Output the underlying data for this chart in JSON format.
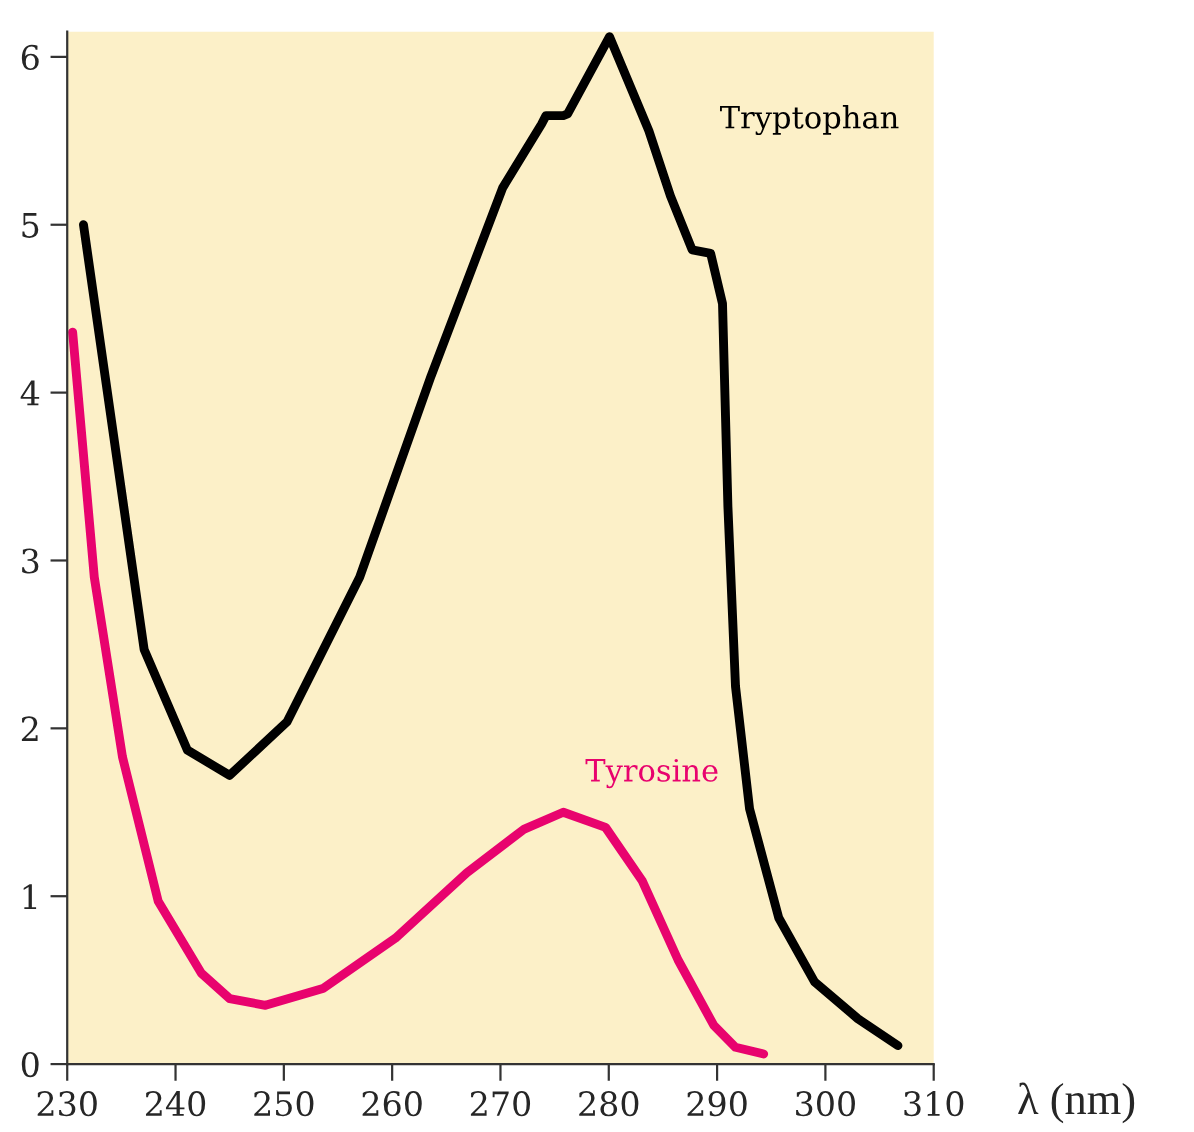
{
  "chart_data": {
    "type": "line",
    "xlabel": "λ (nm)",
    "xlim": [
      230,
      310
    ],
    "xticks": [
      230,
      240,
      250,
      260,
      270,
      280,
      290,
      300,
      310
    ],
    "ylim": [
      0,
      6.15
    ],
    "yticks": [
      0,
      1,
      2,
      3,
      4,
      5,
      6
    ],
    "grid": false,
    "legend": false,
    "marker": "none",
    "line_style": "solid",
    "series": [
      {
        "name": "Tryptophan",
        "color": "#000000",
        "x": [
          231.5,
          237.1,
          241.1,
          245.0,
          250.3,
          257.0,
          263.6,
          270.2,
          273.8,
          274.2,
          275.8,
          276.2,
          280.07,
          283.7,
          285.7,
          287.7,
          289.4,
          290.5,
          291.0,
          291.7,
          293.0,
          295.7,
          299.0,
          303.0,
          306.7
        ],
        "values": [
          5.0,
          2.47,
          1.87,
          1.72,
          2.04,
          2.9,
          4.1,
          5.22,
          5.6,
          5.65,
          5.65,
          5.66,
          6.12,
          5.56,
          5.17,
          4.85,
          4.83,
          4.53,
          3.32,
          2.25,
          1.52,
          0.87,
          0.49,
          0.27,
          0.11
        ]
      },
      {
        "name": "Tyrosine",
        "color": "#e8036e",
        "x": [
          230.5,
          232.5,
          235.1,
          238.4,
          242.4,
          245.0,
          248.3,
          253.6,
          260.3,
          266.9,
          272.2,
          275.8,
          279.7,
          283.1,
          286.4,
          289.7,
          291.7,
          294.3
        ],
        "values": [
          4.36,
          2.9,
          1.83,
          0.97,
          0.54,
          0.39,
          0.35,
          0.45,
          0.75,
          1.14,
          1.4,
          1.5,
          1.41,
          1.09,
          0.62,
          0.23,
          0.1,
          0.06
        ]
      }
    ]
  }
}
